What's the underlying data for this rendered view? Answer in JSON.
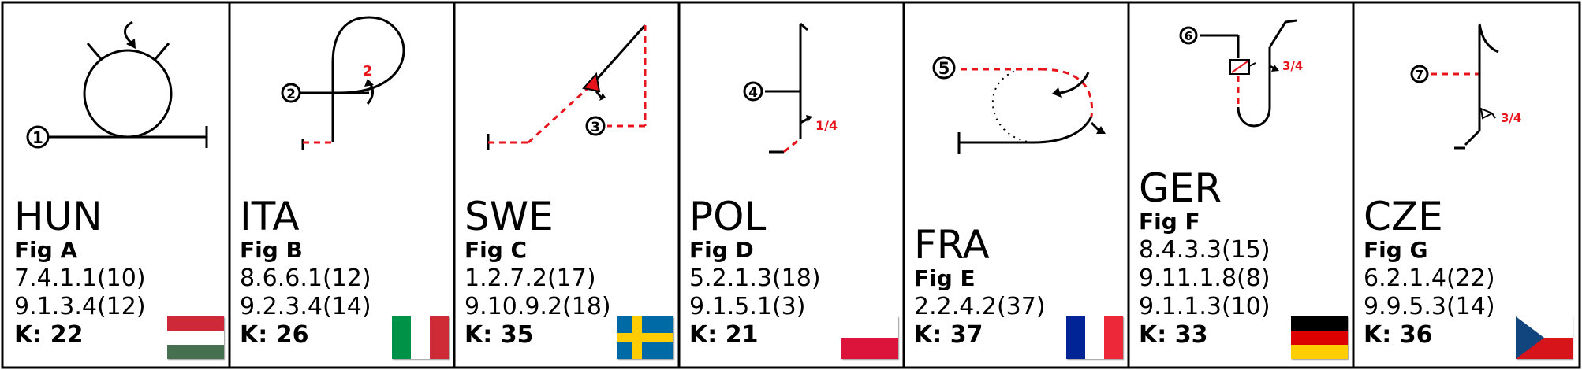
{
  "panels": [
    {
      "country": "HUN",
      "fig": "Fig A",
      "codes": [
        "7.4.1.1(10)",
        "9.1.3.4(12)"
      ],
      "k": "K: 22",
      "marker": "1",
      "fraction": "",
      "flag": "hungary"
    },
    {
      "country": "ITA",
      "fig": "Fig B",
      "codes": [
        "8.6.6.1(12)",
        "9.2.3.4(14)"
      ],
      "k": "K: 26",
      "marker": "2",
      "fraction": "2",
      "flag": "italy"
    },
    {
      "country": "SWE",
      "fig": "Fig C",
      "codes": [
        "1.2.7.2(17)",
        "9.10.9.2(18)"
      ],
      "k": "K: 35",
      "marker": "3",
      "fraction": "",
      "flag": "sweden"
    },
    {
      "country": "POL",
      "fig": "Fig D",
      "codes": [
        "5.2.1.3(18)",
        "9.1.5.1(3)"
      ],
      "k": "K: 21",
      "marker": "4",
      "fraction": "1/4",
      "flag": "poland"
    },
    {
      "country": "FRA",
      "fig": "Fig E",
      "codes": [
        "2.2.4.2(37)"
      ],
      "k": "K: 37",
      "marker": "5",
      "fraction": "",
      "flag": "france"
    },
    {
      "country": "GER",
      "fig": "Fig F",
      "codes": [
        "8.4.3.3(15)",
        "9.11.1.8(8)",
        "9.1.1.3(10)"
      ],
      "k": "K: 33",
      "marker": "6",
      "fraction": "3/4",
      "flag": "germany"
    },
    {
      "country": "CZE",
      "fig": "Fig G",
      "codes": [
        "6.2.1.4(22)",
        "9.9.5.3(14)"
      ],
      "k": "K: 36",
      "marker": "7",
      "fraction": "3/4",
      "flag": "czech"
    }
  ]
}
